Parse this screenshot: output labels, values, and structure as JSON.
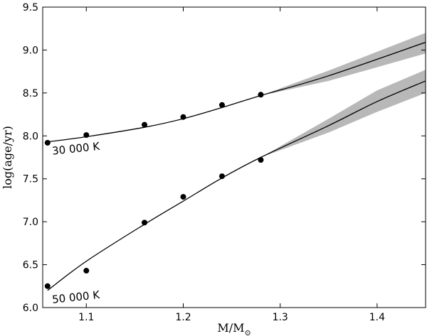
{
  "chart_data": {
    "type": "scatter",
    "title": "",
    "xlabel": "M/M",
    "xlabel_subscript": "⊙",
    "ylabel": "log(age/yr)",
    "xlim": [
      1.055,
      1.45
    ],
    "ylim": [
      6.0,
      9.5
    ],
    "xticks": [
      "1.1",
      "1.2",
      "1.3",
      "1.4"
    ],
    "xtick_values": [
      1.1,
      1.2,
      1.3,
      1.4
    ],
    "yticks": [
      "6.0",
      "6.5",
      "7.0",
      "7.5",
      "8.0",
      "8.5",
      "9.0",
      "9.5"
    ],
    "ytick_values": [
      6.0,
      6.5,
      7.0,
      7.5,
      8.0,
      8.5,
      9.0,
      9.5
    ],
    "grid": false,
    "series": [
      {
        "name": "30 000 K",
        "points": {
          "x": [
            1.06,
            1.1,
            1.16,
            1.2,
            1.24,
            1.28
          ],
          "y": [
            7.92,
            8.01,
            8.13,
            8.22,
            8.36,
            8.48
          ]
        },
        "fit": {
          "x": [
            1.06,
            1.1,
            1.16,
            1.2,
            1.24,
            1.28,
            1.35,
            1.45
          ],
          "y": [
            7.93,
            7.99,
            8.1,
            8.2,
            8.33,
            8.47,
            8.7,
            9.09
          ]
        },
        "band": {
          "x": [
            1.28,
            1.35,
            1.45
          ],
          "lower": [
            8.47,
            8.64,
            8.96
          ],
          "upper": [
            8.47,
            8.76,
            9.2
          ]
        },
        "color": "#000000"
      },
      {
        "name": "50 000 K",
        "points": {
          "x": [
            1.06,
            1.1,
            1.16,
            1.2,
            1.24,
            1.28
          ],
          "y": [
            6.25,
            6.43,
            6.99,
            7.29,
            7.53,
            7.72
          ]
        },
        "fit": {
          "x": [
            1.06,
            1.1,
            1.16,
            1.2,
            1.24,
            1.28,
            1.35,
            1.4,
            1.45
          ],
          "y": [
            6.2,
            6.54,
            6.97,
            7.24,
            7.51,
            7.75,
            8.12,
            8.4,
            8.64
          ]
        },
        "band": {
          "x": [
            1.28,
            1.35,
            1.4,
            1.45
          ],
          "lower": [
            7.75,
            8.04,
            8.28,
            8.5
          ],
          "upper": [
            7.75,
            8.2,
            8.53,
            8.77
          ]
        },
        "color": "#000000"
      }
    ],
    "band_color": "#b8b8b8"
  }
}
